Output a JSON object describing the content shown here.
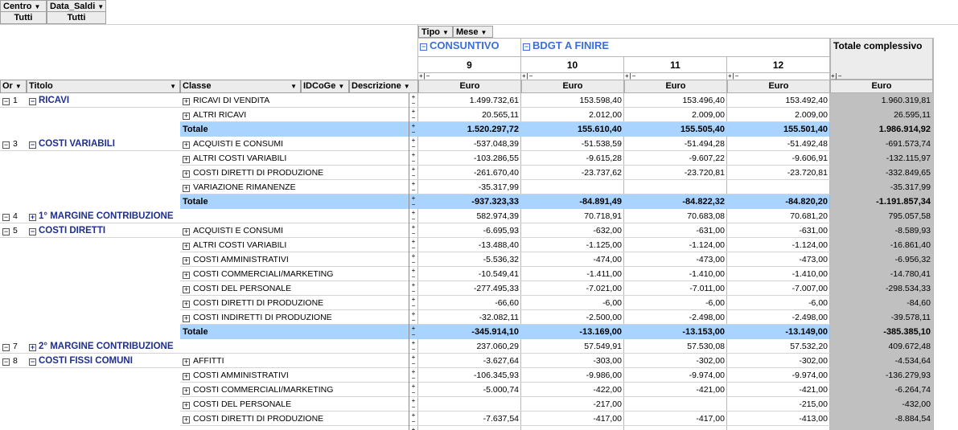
{
  "filters": [
    {
      "name": "Centro",
      "value": "Tutti"
    },
    {
      "name": "Data_Saldi",
      "value": "Tutti"
    }
  ],
  "column_fields": [
    {
      "name": "Tipo"
    },
    {
      "name": "Mese"
    }
  ],
  "column_groups": {
    "consuntivo": "CONSUNTIVO",
    "bdgt": "BDGT A FINIRE",
    "grand_total": "Totale complessivo"
  },
  "months": [
    "9",
    "10",
    "11",
    "12"
  ],
  "unit": "Euro",
  "row_fields": [
    {
      "name": "Or"
    },
    {
      "name": "Titolo"
    },
    {
      "name": "Classe"
    },
    {
      "name": "IDCoGe"
    },
    {
      "name": "Descrizione"
    }
  ],
  "rows": [
    {
      "kind": "title",
      "ord": "1",
      "title": "RICAVI",
      "exp": "−",
      "cls": "RICAVI DI VENDITA",
      "v": [
        "1.499.732,61",
        "153.598,40",
        "153.496,40",
        "153.492,40",
        "1.960.319,81"
      ]
    },
    {
      "kind": "sub",
      "cls": "ALTRI RICAVI",
      "v": [
        "20.565,11",
        "2.012,00",
        "2.009,00",
        "2.009,00",
        "26.595,11"
      ]
    },
    {
      "kind": "total",
      "cls": "Totale",
      "v": [
        "1.520.297,72",
        "155.610,40",
        "155.505,40",
        "155.501,40",
        "1.986.914,92"
      ]
    },
    {
      "kind": "title",
      "ord": "3",
      "title": "COSTI VARIABILI",
      "exp": "−",
      "cls": "ACQUISTI E CONSUMI",
      "v": [
        "-537.048,39",
        "-51.538,59",
        "-51.494,28",
        "-51.492,48",
        "-691.573,74"
      ]
    },
    {
      "kind": "sub",
      "cls": "ALTRI COSTI VARIABILI",
      "v": [
        "-103.286,55",
        "-9.615,28",
        "-9.607,22",
        "-9.606,91",
        "-132.115,97"
      ]
    },
    {
      "kind": "sub",
      "cls": "COSTI DIRETTI DI PRODUZIONE",
      "v": [
        "-261.670,40",
        "-23.737,62",
        "-23.720,81",
        "-23.720,81",
        "-332.849,65"
      ]
    },
    {
      "kind": "sub",
      "cls": "VARIAZIONE RIMANENZE",
      "v": [
        "-35.317,99",
        "",
        "",
        "",
        "-35.317,99"
      ]
    },
    {
      "kind": "total",
      "cls": "Totale",
      "v": [
        "-937.323,33",
        "-84.891,49",
        "-84.822,32",
        "-84.820,20",
        "-1.191.857,34"
      ]
    },
    {
      "kind": "margin",
      "ord": "4",
      "title": "1° MARGINE CONTRIBUZIONE",
      "exp": "+",
      "v": [
        "582.974,39",
        "70.718,91",
        "70.683,08",
        "70.681,20",
        "795.057,58"
      ]
    },
    {
      "kind": "title",
      "ord": "5",
      "title": "COSTI DIRETTI",
      "exp": "−",
      "cls": "ACQUISTI E CONSUMI",
      "v": [
        "-6.695,93",
        "-632,00",
        "-631,00",
        "-631,00",
        "-8.589,93"
      ]
    },
    {
      "kind": "sub",
      "cls": "ALTRI COSTI VARIABILI",
      "v": [
        "-13.488,40",
        "-1.125,00",
        "-1.124,00",
        "-1.124,00",
        "-16.861,40"
      ]
    },
    {
      "kind": "sub",
      "cls": "COSTI AMMINISTRATIVI",
      "v": [
        "-5.536,32",
        "-474,00",
        "-473,00",
        "-473,00",
        "-6.956,32"
      ]
    },
    {
      "kind": "sub",
      "cls": "COSTI COMMERCIALI/MARKETING",
      "v": [
        "-10.549,41",
        "-1.411,00",
        "-1.410,00",
        "-1.410,00",
        "-14.780,41"
      ]
    },
    {
      "kind": "sub",
      "cls": "COSTI DEL PERSONALE",
      "v": [
        "-277.495,33",
        "-7.021,00",
        "-7.011,00",
        "-7.007,00",
        "-298.534,33"
      ]
    },
    {
      "kind": "sub",
      "cls": "COSTI DIRETTI DI PRODUZIONE",
      "v": [
        "-66,60",
        "-6,00",
        "-6,00",
        "-6,00",
        "-84,60"
      ]
    },
    {
      "kind": "sub",
      "cls": "COSTI INDIRETTI DI PRODUZIONE",
      "v": [
        "-32.082,11",
        "-2.500,00",
        "-2.498,00",
        "-2.498,00",
        "-39.578,11"
      ]
    },
    {
      "kind": "total",
      "cls": "Totale",
      "v": [
        "-345.914,10",
        "-13.169,00",
        "-13.153,00",
        "-13.149,00",
        "-385.385,10"
      ]
    },
    {
      "kind": "margin",
      "ord": "7",
      "title": "2° MARGINE CONTRIBUZIONE",
      "exp": "+",
      "v": [
        "237.060,29",
        "57.549,91",
        "57.530,08",
        "57.532,20",
        "409.672,48"
      ]
    },
    {
      "kind": "title",
      "ord": "8",
      "title": "COSTI FISSI COMUNI",
      "exp": "−",
      "cls": "AFFITTI",
      "v": [
        "-3.627,64",
        "-303,00",
        "-302,00",
        "-302,00",
        "-4.534,64"
      ]
    },
    {
      "kind": "sub",
      "cls": "COSTI AMMINISTRATIVI",
      "v": [
        "-106.345,93",
        "-9.986,00",
        "-9.974,00",
        "-9.974,00",
        "-136.279,93"
      ]
    },
    {
      "kind": "sub",
      "cls": "COSTI COMMERCIALI/MARKETING",
      "v": [
        "-5.000,74",
        "-422,00",
        "-421,00",
        "-421,00",
        "-6.264,74"
      ]
    },
    {
      "kind": "sub",
      "cls": "COSTI DEL PERSONALE",
      "v": [
        "",
        "-217,00",
        "",
        "-215,00",
        "-432,00"
      ]
    },
    {
      "kind": "sub",
      "cls": "COSTI DIRETTI DI PRODUZIONE",
      "v": [
        "-7.637,54",
        "-417,00",
        "-417,00",
        "-413,00",
        "-8.884,54"
      ]
    },
    {
      "kind": "sub",
      "cls": "",
      "v": [
        "",
        "",
        "",
        "",
        ""
      ]
    }
  ]
}
